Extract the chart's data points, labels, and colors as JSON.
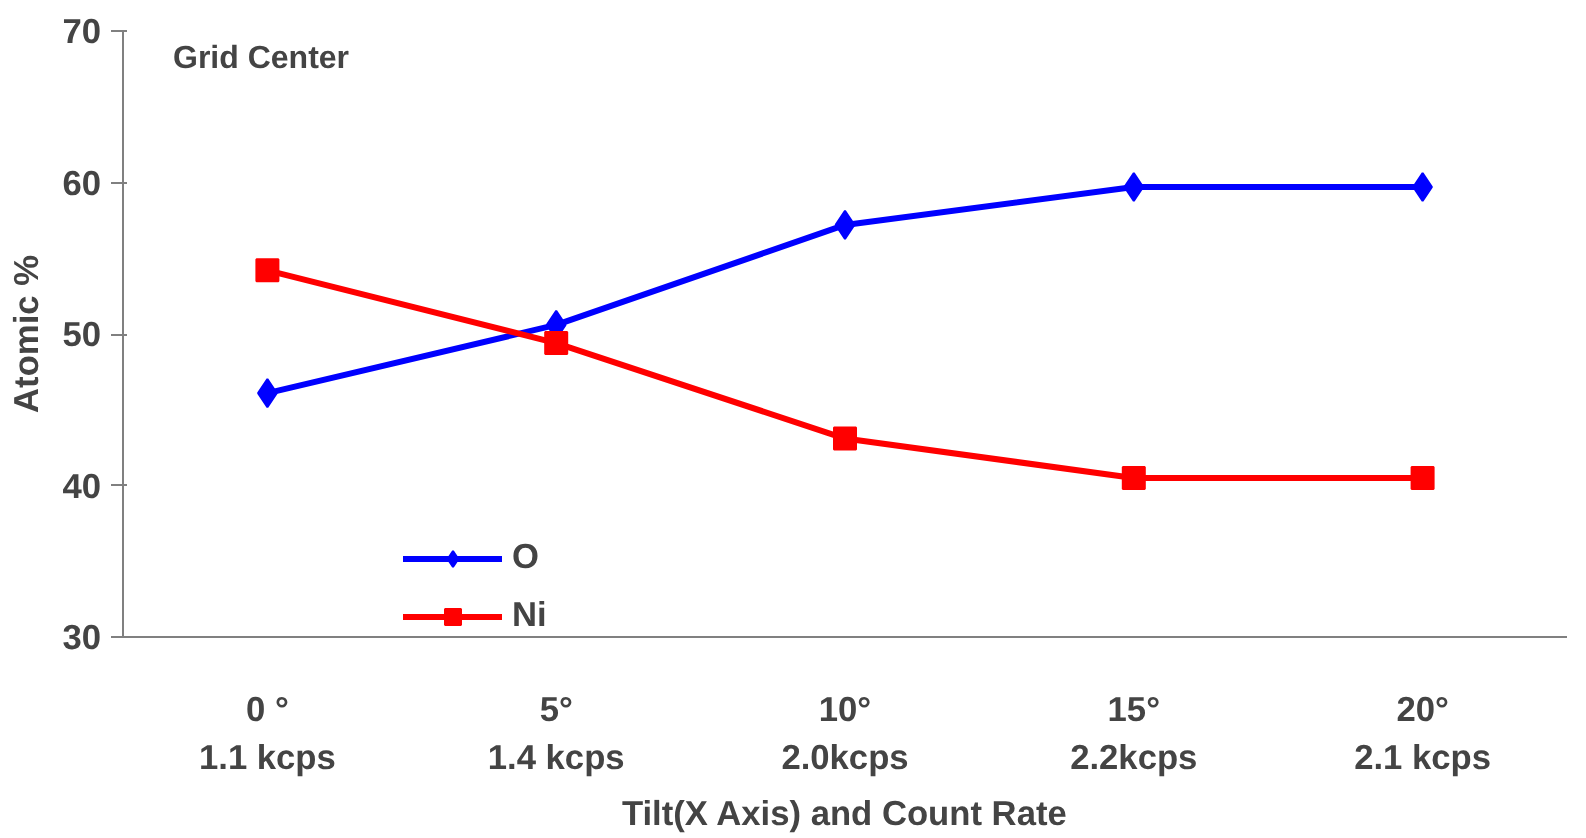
{
  "chart_data": {
    "type": "line",
    "title": "Grid Center",
    "xlabel": "Tilt(X Axis) and Count Rate",
    "ylabel": "Atomic %",
    "categories": [
      "0 °\n1.1 kcps",
      "5°\n1.4 kcps",
      "10°\n2.0kcps",
      "15°\n2.2kcps",
      "20°\n2.1 kcps"
    ],
    "series": [
      {
        "name": "O",
        "color": "#0000ff",
        "marker": "diamond",
        "values": [
          46.1,
          50.6,
          57.2,
          59.7,
          59.7
        ]
      },
      {
        "name": "Ni",
        "color": "#ff0000",
        "marker": "square",
        "values": [
          54.2,
          49.4,
          43.1,
          40.5,
          40.5
        ]
      }
    ],
    "ylim": [
      30,
      70
    ],
    "yticks": [
      30,
      40,
      50,
      60,
      70
    ],
    "grid": false,
    "legend": "bottom left",
    "line_style": "solid"
  }
}
